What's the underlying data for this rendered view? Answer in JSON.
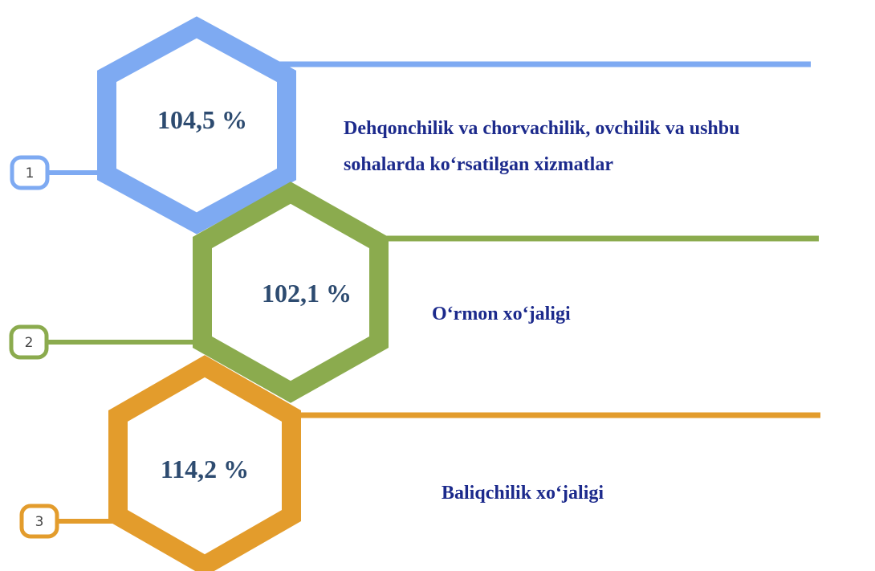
{
  "items": [
    {
      "number": "1",
      "value": "104,5 %",
      "label": [
        "Dehqonchilik va chorvachilik, ovchilik va ushbu",
        "sohalarda ko‘rsatilgan xizmatlar"
      ],
      "color": "#7eaaf2"
    },
    {
      "number": "2",
      "value": "102,1 %",
      "label": [
        "O‘rmon xo‘jaligi"
      ],
      "color": "#8bab4e"
    },
    {
      "number": "3",
      "value": "114,2 %",
      "label": [
        "Baliqchilik xo‘jaligi"
      ],
      "color": "#e39c2c"
    }
  ]
}
